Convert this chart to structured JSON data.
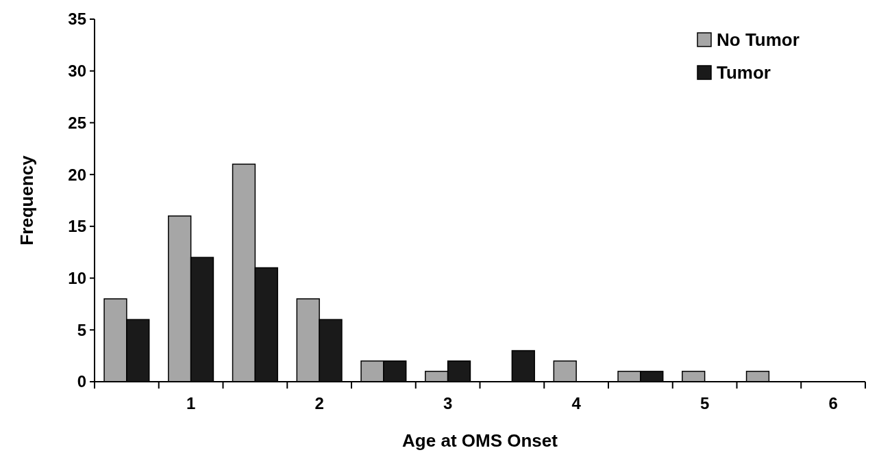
{
  "chart_data": {
    "type": "bar",
    "xlabel": "Age at OMS Onset",
    "ylabel": "Frequency",
    "categories": [
      null,
      "1",
      null,
      "2",
      null,
      "3",
      null,
      "4",
      null,
      "5",
      null,
      "6"
    ],
    "series": [
      {
        "name": "No Tumor",
        "color": "#a6a6a6",
        "values": [
          8,
          16,
          21,
          8,
          2,
          1,
          0,
          2,
          1,
          1,
          1,
          0
        ]
      },
      {
        "name": "Tumor",
        "color": "#1a1a1a",
        "values": [
          6,
          12,
          11,
          6,
          2,
          2,
          3,
          0,
          1,
          0,
          0,
          0
        ]
      }
    ],
    "ylim": [
      0,
      35
    ],
    "yticks": [
      0,
      5,
      10,
      15,
      20,
      25,
      30,
      35
    ],
    "legend": "top right"
  }
}
